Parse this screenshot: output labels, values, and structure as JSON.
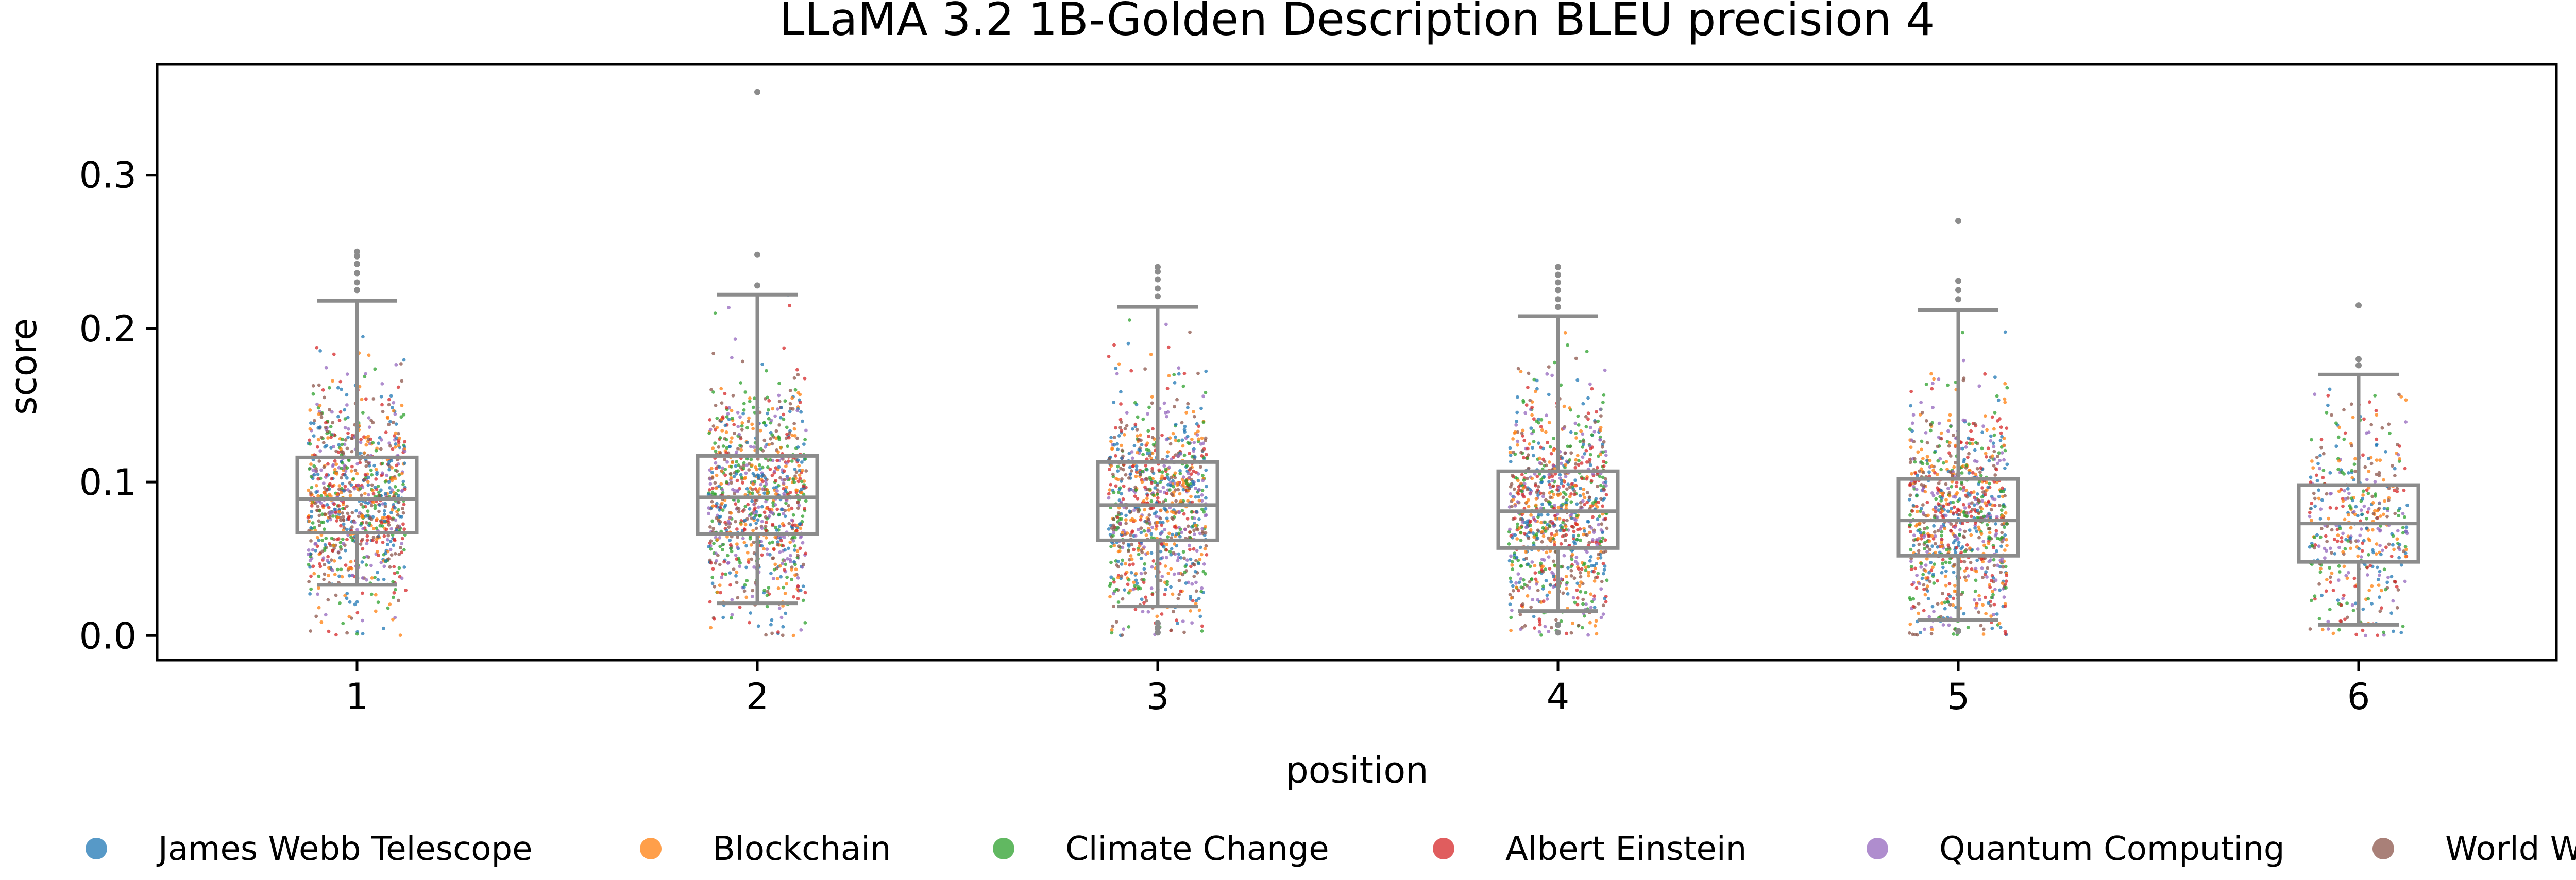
{
  "chart_data": {
    "type": "box+strip",
    "title": "LLaMA 3.2 1B-Golden Description BLEU precision 4",
    "xlabel": "position",
    "ylabel": "score",
    "categories": [
      "1",
      "2",
      "3",
      "4",
      "5",
      "6"
    ],
    "yticks": [
      "0.0",
      "0.1",
      "0.2",
      "0.3"
    ],
    "ylim": [
      -0.016,
      0.372
    ],
    "grid": false,
    "legend_position": "bottom",
    "series": [
      {
        "name": "James Webb Telescope",
        "color": "#1f77b4"
      },
      {
        "name": "Blockchain",
        "color": "#ff7f0e"
      },
      {
        "name": "Climate Change",
        "color": "#2ca02c"
      },
      {
        "name": "Albert Einstein",
        "color": "#d62728"
      },
      {
        "name": "Quantum Computing",
        "color": "#9467bd"
      },
      {
        "name": "World War II",
        "color": "#8c564b"
      }
    ],
    "boxes": [
      {
        "position": "1",
        "whisker_low": 0.033,
        "q1": 0.067,
        "median": 0.089,
        "q3": 0.116,
        "whisker_high": 0.218,
        "outliers": [
          0.225,
          0.23,
          0.236,
          0.242,
          0.247,
          0.25
        ],
        "n_points": 900
      },
      {
        "position": "2",
        "whisker_low": 0.021,
        "q1": 0.066,
        "median": 0.09,
        "q3": 0.117,
        "whisker_high": 0.222,
        "outliers": [
          0.228,
          0.248,
          0.354
        ],
        "n_points": 900
      },
      {
        "position": "3",
        "whisker_low": 0.019,
        "q1": 0.062,
        "median": 0.085,
        "q3": 0.113,
        "whisker_high": 0.214,
        "outliers": [
          0.002,
          0.005,
          0.008,
          0.221,
          0.226,
          0.232,
          0.237,
          0.24
        ],
        "n_points": 900
      },
      {
        "position": "4",
        "whisker_low": 0.016,
        "q1": 0.057,
        "median": 0.081,
        "q3": 0.107,
        "whisker_high": 0.208,
        "outliers": [
          0.002,
          0.007,
          0.214,
          0.219,
          0.225,
          0.23,
          0.235,
          0.24
        ],
        "n_points": 900
      },
      {
        "position": "5",
        "whisker_low": 0.01,
        "q1": 0.052,
        "median": 0.075,
        "q3": 0.102,
        "whisker_high": 0.212,
        "outliers": [
          0.003,
          0.219,
          0.225,
          0.231,
          0.27
        ],
        "n_points": 900
      },
      {
        "position": "6",
        "whisker_low": 0.007,
        "q1": 0.048,
        "median": 0.073,
        "q3": 0.098,
        "whisker_high": 0.17,
        "outliers": [
          0.176,
          0.18,
          0.215
        ],
        "n_points": 420
      }
    ]
  }
}
